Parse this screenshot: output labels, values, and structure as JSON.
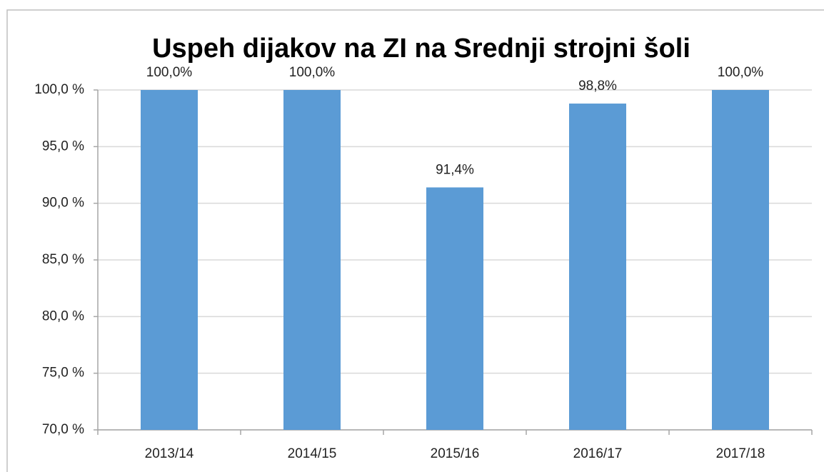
{
  "chart_data": {
    "type": "bar",
    "title": "Uspeh dijakov na ZI na Srednji strojni šoli",
    "categories": [
      "2013/14",
      "2014/15",
      "2015/16",
      "2016/17",
      "2017/18"
    ],
    "values": [
      100,
      100,
      91.4,
      98.8,
      100
    ],
    "value_labels": [
      "100,0%",
      "100,0%",
      "91,4%",
      "98,8%",
      "100,0%"
    ],
    "color": "#5b9bd5",
    "ylim": [
      70,
      100
    ],
    "yticks": [
      {
        "value": 70,
        "label": "70,0 %"
      },
      {
        "value": 75,
        "label": "75,0 %"
      },
      {
        "value": 80,
        "label": "80,0 %"
      },
      {
        "value": 85,
        "label": "85,0 %"
      },
      {
        "value": 90,
        "label": "90,0 %"
      },
      {
        "value": 95,
        "label": "95,0 %"
      },
      {
        "value": 100,
        "label": "100,0 %"
      }
    ],
    "grid": true
  }
}
